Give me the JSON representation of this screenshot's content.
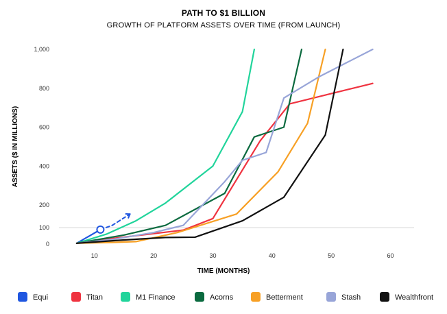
{
  "chart_data": {
    "type": "line",
    "title": "PATH TO $1 BILLION",
    "subtitle": "GROWTH OF PLATFORM ASSETS OVER TIME (FROM LAUNCH)",
    "xlabel": "TIME (MONTHS)",
    "ylabel": "ASSETS ($ IN MILLIONS)",
    "xlim": [
      4,
      64
    ],
    "ylim": [
      0,
      1000
    ],
    "x_ticks": [
      10,
      20,
      30,
      40,
      50,
      60
    ],
    "y_ticks": [
      0,
      100,
      200,
      400,
      600,
      800,
      1000
    ],
    "y_tick_labels": [
      "0",
      "100",
      "200",
      "400",
      "600",
      "800",
      "1,000"
    ],
    "grid": false,
    "legend_position": "bottom",
    "series": [
      {
        "name": "Equi",
        "color": "#1f56e0",
        "points": [
          [
            7,
            5
          ],
          [
            11,
            88
          ]
        ],
        "projection": [
          [
            13,
            110
          ],
          [
            16,
            160
          ]
        ]
      },
      {
        "name": "Titan",
        "color": "#ef3340",
        "points": [
          [
            7,
            5
          ],
          [
            12,
            30
          ],
          [
            18,
            55
          ],
          [
            25,
            85
          ],
          [
            30,
            140
          ],
          [
            38,
            530
          ],
          [
            43,
            720
          ],
          [
            57,
            825
          ]
        ]
      },
      {
        "name": "M1 Finance",
        "color": "#21d49b",
        "points": [
          [
            7,
            5
          ],
          [
            12,
            60
          ],
          [
            17,
            130
          ],
          [
            22,
            210
          ],
          [
            30,
            400
          ],
          [
            35,
            680
          ],
          [
            37,
            1000
          ]
        ]
      },
      {
        "name": "Acorns",
        "color": "#0b6a3f",
        "points": [
          [
            7,
            5
          ],
          [
            15,
            55
          ],
          [
            22,
            110
          ],
          [
            32,
            260
          ],
          [
            37,
            550
          ],
          [
            42,
            600
          ],
          [
            45,
            1000
          ]
        ]
      },
      {
        "name": "Betterment",
        "color": "#f7a025",
        "points": [
          [
            7,
            5
          ],
          [
            13,
            10
          ],
          [
            17,
            15
          ],
          [
            24,
            70
          ],
          [
            34,
            160
          ],
          [
            41,
            370
          ],
          [
            46,
            620
          ],
          [
            49,
            1000
          ]
        ]
      },
      {
        "name": "Stash",
        "color": "#98a5d8",
        "points": [
          [
            7,
            5
          ],
          [
            13,
            28
          ],
          [
            20,
            70
          ],
          [
            25,
            110
          ],
          [
            32,
            320
          ],
          [
            35,
            430
          ],
          [
            39,
            470
          ],
          [
            42,
            750
          ],
          [
            48,
            860
          ],
          [
            57,
            1000
          ]
        ]
      },
      {
        "name": "Wealthfront",
        "color": "#111111",
        "points": [
          [
            7,
            5
          ],
          [
            15,
            25
          ],
          [
            22,
            40
          ],
          [
            27,
            42
          ],
          [
            35,
            130
          ],
          [
            42,
            240
          ],
          [
            49,
            560
          ],
          [
            52,
            1000
          ]
        ]
      }
    ]
  }
}
